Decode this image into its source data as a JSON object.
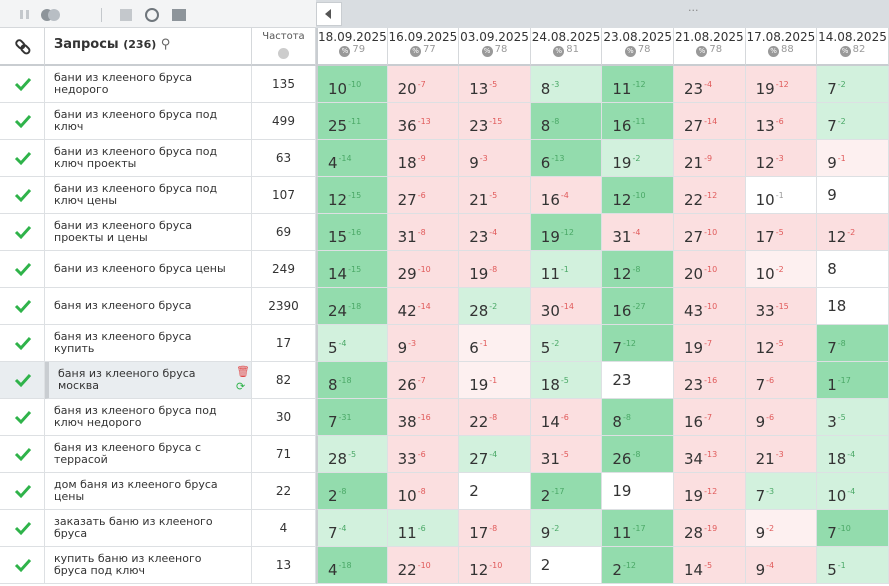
{
  "header": {
    "query_title": "Запросы",
    "query_count": "(236)",
    "freq_title": "Частота",
    "dates": [
      {
        "date": "18.09.2025",
        "percent": "79"
      },
      {
        "date": "16.09.2025",
        "percent": "77"
      },
      {
        "date": "03.09.2025",
        "percent": "78"
      },
      {
        "date": "24.08.2025",
        "percent": "81"
      },
      {
        "date": "23.08.2025",
        "percent": "78"
      },
      {
        "date": "21.08.2025",
        "percent": "78"
      },
      {
        "date": "17.08.2025",
        "percent": "88"
      },
      {
        "date": "14.08.2025",
        "percent": "82"
      }
    ]
  },
  "rows": [
    {
      "query": "бани из клееного бруса недорого",
      "freq": "135",
      "cells": [
        [
          10,
          "-10",
          "G"
        ],
        [
          20,
          "-7",
          "r"
        ],
        [
          13,
          "-5",
          "r"
        ],
        [
          8,
          "-3",
          "g"
        ],
        [
          11,
          "-12",
          "G"
        ],
        [
          23,
          "-4",
          "r"
        ],
        [
          19,
          "-12",
          "r"
        ],
        [
          7,
          "-2",
          "g"
        ]
      ]
    },
    {
      "query": "бани из клееного бруса под ключ",
      "freq": "499",
      "cells": [
        [
          25,
          "-11",
          "G"
        ],
        [
          36,
          "-13",
          "r"
        ],
        [
          23,
          "-15",
          "r"
        ],
        [
          8,
          "-8",
          "G"
        ],
        [
          16,
          "-11",
          "G"
        ],
        [
          27,
          "-14",
          "r"
        ],
        [
          13,
          "-6",
          "r"
        ],
        [
          7,
          "-2",
          "g"
        ]
      ]
    },
    {
      "query": "бани из клееного бруса под ключ проекты",
      "freq": "63",
      "cells": [
        [
          4,
          "-14",
          "G"
        ],
        [
          18,
          "-9",
          "r"
        ],
        [
          9,
          "-3",
          "r"
        ],
        [
          6,
          "-13",
          "G"
        ],
        [
          19,
          "-2",
          "g"
        ],
        [
          21,
          "-9",
          "r"
        ],
        [
          12,
          "-3",
          "r"
        ],
        [
          9,
          "-1",
          "p"
        ]
      ]
    },
    {
      "query": "бани из клееного бруса под ключ цены",
      "freq": "107",
      "cells": [
        [
          12,
          "-15",
          "G"
        ],
        [
          27,
          "-6",
          "r"
        ],
        [
          21,
          "-5",
          "r"
        ],
        [
          16,
          "-4",
          "r"
        ],
        [
          12,
          "-10",
          "G"
        ],
        [
          22,
          "-12",
          "r"
        ],
        [
          10,
          "-1",
          "w"
        ],
        [
          9,
          null,
          "w"
        ]
      ]
    },
    {
      "query": "бани из клееного бруса проекты и цены",
      "freq": "69",
      "cells": [
        [
          15,
          "-16",
          "G"
        ],
        [
          31,
          "-8",
          "r"
        ],
        [
          23,
          "-4",
          "r"
        ],
        [
          19,
          "-12",
          "G"
        ],
        [
          31,
          "-4",
          "r"
        ],
        [
          27,
          "-10",
          "r"
        ],
        [
          17,
          "-5",
          "r"
        ],
        [
          12,
          "-2",
          "r"
        ]
      ]
    },
    {
      "query": "бани из клееного бруса цены",
      "freq": "249",
      "cells": [
        [
          14,
          "-15",
          "G"
        ],
        [
          29,
          "-10",
          "r"
        ],
        [
          19,
          "-8",
          "r"
        ],
        [
          11,
          "-1",
          "g"
        ],
        [
          12,
          "-8",
          "G"
        ],
        [
          20,
          "-10",
          "r"
        ],
        [
          10,
          "-2",
          "p"
        ],
        [
          8,
          null,
          "w"
        ]
      ]
    },
    {
      "query": "баня из клееного бруса",
      "freq": "2390",
      "cells": [
        [
          24,
          "-18",
          "G"
        ],
        [
          42,
          "-14",
          "r"
        ],
        [
          28,
          "-2",
          "g"
        ],
        [
          30,
          "-14",
          "r"
        ],
        [
          16,
          "-27",
          "G"
        ],
        [
          43,
          "-10",
          "r"
        ],
        [
          33,
          "-15",
          "r"
        ],
        [
          18,
          null,
          "w"
        ]
      ]
    },
    {
      "query": "баня из клееного бруса купить",
      "freq": "17",
      "cells": [
        [
          5,
          "-4",
          "g"
        ],
        [
          9,
          "-3",
          "r"
        ],
        [
          6,
          "-1",
          "p"
        ],
        [
          5,
          "-2",
          "g"
        ],
        [
          7,
          "-12",
          "G"
        ],
        [
          19,
          "-7",
          "r"
        ],
        [
          12,
          "-5",
          "r"
        ],
        [
          7,
          "-8",
          "G"
        ]
      ]
    },
    {
      "query": "баня из клееного бруса москва",
      "freq": "82",
      "cells": [
        [
          8,
          "-18",
          "G"
        ],
        [
          26,
          "-7",
          "r"
        ],
        [
          19,
          "-1",
          "p"
        ],
        [
          18,
          "-5",
          "g"
        ],
        [
          23,
          null,
          "w"
        ],
        [
          23,
          "-16",
          "r"
        ],
        [
          7,
          "-6",
          "r"
        ],
        [
          1,
          "-17",
          "G"
        ]
      ]
    },
    {
      "query": "баня из клееного бруса под ключ недорого",
      "freq": "30",
      "cells": [
        [
          7,
          "-31",
          "G"
        ],
        [
          38,
          "-16",
          "r"
        ],
        [
          22,
          "-8",
          "r"
        ],
        [
          14,
          "-6",
          "r"
        ],
        [
          8,
          "-8",
          "G"
        ],
        [
          16,
          "-7",
          "r"
        ],
        [
          9,
          "-6",
          "r"
        ],
        [
          3,
          "-5",
          "g"
        ]
      ]
    },
    {
      "query": "баня из клееного бруса с террасой",
      "freq": "71",
      "cells": [
        [
          28,
          "-5",
          "g"
        ],
        [
          33,
          "-6",
          "r"
        ],
        [
          27,
          "-4",
          "g"
        ],
        [
          31,
          "-5",
          "r"
        ],
        [
          26,
          "-8",
          "G"
        ],
        [
          34,
          "-13",
          "r"
        ],
        [
          21,
          "-3",
          "r"
        ],
        [
          18,
          "-4",
          "g"
        ]
      ]
    },
    {
      "query": "дом баня из клееного бруса цены",
      "freq": "22",
      "cells": [
        [
          2,
          "-8",
          "G"
        ],
        [
          10,
          "-8",
          "r"
        ],
        [
          2,
          null,
          "w"
        ],
        [
          2,
          "-17",
          "G"
        ],
        [
          19,
          null,
          "w"
        ],
        [
          19,
          "-12",
          "r"
        ],
        [
          7,
          "-3",
          "g"
        ],
        [
          10,
          "-4",
          "g"
        ]
      ]
    },
    {
      "query": "заказать баню из клееного бруса",
      "freq": "4",
      "cells": [
        [
          7,
          "-4",
          "g"
        ],
        [
          11,
          "-6",
          "g"
        ],
        [
          17,
          "-8",
          "r"
        ],
        [
          9,
          "-2",
          "g"
        ],
        [
          11,
          "-17",
          "G"
        ],
        [
          28,
          "-19",
          "r"
        ],
        [
          9,
          "-2",
          "p"
        ],
        [
          7,
          "-10",
          "G"
        ]
      ]
    },
    {
      "query": "купить баню из клееного бруса под ключ",
      "freq": "13",
      "cells": [
        [
          4,
          "-18",
          "G"
        ],
        [
          22,
          "-10",
          "r"
        ],
        [
          12,
          "-10",
          "r"
        ],
        [
          2,
          null,
          "w"
        ],
        [
          2,
          "-12",
          "G"
        ],
        [
          14,
          "-5",
          "r"
        ],
        [
          9,
          "-4",
          "r"
        ],
        [
          5,
          "-1",
          "g"
        ]
      ]
    }
  ]
}
